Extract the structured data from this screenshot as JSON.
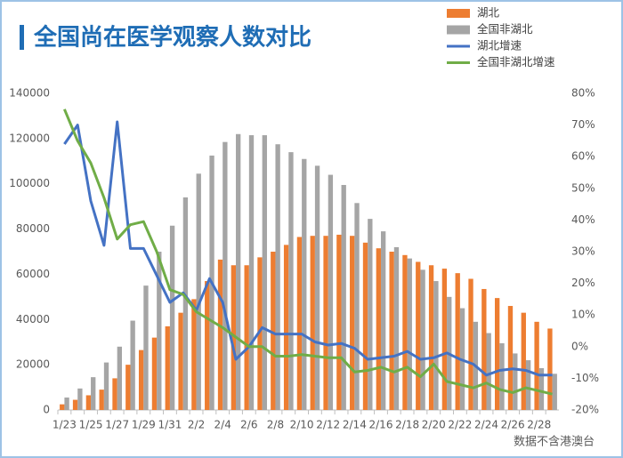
{
  "chart_data": {
    "type": "bar",
    "title": "全国尚在医学观察人数对比",
    "note": "数据不含港澳台",
    "categories": [
      "1/23",
      null,
      "1/25",
      null,
      "1/27",
      null,
      "1/29",
      null,
      "1/31",
      null,
      "2/2",
      null,
      "2/4",
      null,
      "2/6",
      null,
      "2/8",
      null,
      "2/10",
      null,
      "2/12",
      null,
      "2/14",
      null,
      "2/16",
      null,
      "2/18",
      null,
      "2/20",
      null,
      "2/22",
      null,
      "2/24",
      null,
      "2/26",
      null,
      "2/28",
      null
    ],
    "series": [
      {
        "name": "湖北",
        "type": "bar",
        "color": "#ed7d31",
        "values": [
          2500,
          4500,
          6500,
          9000,
          14000,
          20000,
          26500,
          32000,
          37000,
          43000,
          49000,
          57000,
          66500,
          64000,
          64000,
          67500,
          70000,
          73000,
          76500,
          77000,
          77000,
          77500,
          77000,
          74000,
          71500,
          70000,
          68500,
          65500,
          64000,
          62500,
          60500,
          58000,
          53500,
          49500,
          46000,
          43000,
          39000,
          36000
        ]
      },
      {
        "name": "全国非湖北",
        "type": "bar",
        "color": "#a5a5a5",
        "values": [
          5500,
          9500,
          14500,
          21000,
          28000,
          39500,
          55000,
          70000,
          81500,
          94000,
          104500,
          112500,
          118500,
          122000,
          121500,
          121500,
          117500,
          114000,
          111000,
          108000,
          104000,
          99500,
          91500,
          84500,
          79000,
          72000,
          67000,
          62000,
          57000,
          50000,
          45000,
          39000,
          34000,
          29500,
          25000,
          22000,
          18500,
          16000
        ]
      },
      {
        "name": "湖北增速",
        "type": "line",
        "axis": "y2",
        "color": "#4472c4",
        "values": [
          64,
          70,
          46,
          32,
          71,
          31,
          31,
          22.5,
          14,
          17,
          11.5,
          21.5,
          14,
          -4,
          0,
          6,
          4,
          4,
          4,
          1.5,
          0.5,
          1,
          -0.5,
          -4,
          -3.5,
          -3,
          -1.5,
          -4,
          -3.5,
          -2,
          -4,
          -5.5,
          -9,
          -7.5,
          -7,
          -7.5,
          -9,
          -9
        ]
      },
      {
        "name": "全国非湖北增速",
        "type": "line",
        "axis": "y2",
        "color": "#70ad47",
        "values": [
          75,
          65,
          58,
          47,
          34,
          38.5,
          39.5,
          30,
          18,
          16.5,
          11,
          8.5,
          6,
          3,
          0,
          0,
          -3,
          -3,
          -2.5,
          -3,
          -3.5,
          -3.5,
          -8,
          -7.5,
          -6.5,
          -8,
          -6.5,
          -9.5,
          -5.5,
          -11,
          -12,
          -13,
          -11.5,
          -13.5,
          -14.5,
          -13,
          -14,
          -15
        ]
      }
    ],
    "ylim": [
      0,
      140000
    ],
    "yticks": [
      0,
      20000,
      40000,
      60000,
      80000,
      100000,
      120000,
      140000
    ],
    "y2lim": [
      -20,
      80
    ],
    "y2ticks": [
      {
        "value": -20,
        "label": "-20%"
      },
      {
        "value": -10,
        "label": "-10%"
      },
      {
        "value": 0,
        "label": "0%"
      },
      {
        "value": 10,
        "label": "10%"
      },
      {
        "value": 20,
        "label": "20%"
      },
      {
        "value": 30,
        "label": "30%"
      },
      {
        "value": 40,
        "label": "40%"
      },
      {
        "value": 50,
        "label": "50%"
      },
      {
        "value": 60,
        "label": "60%"
      },
      {
        "value": 70,
        "label": "70%"
      },
      {
        "value": 80,
        "label": "80%"
      }
    ]
  }
}
